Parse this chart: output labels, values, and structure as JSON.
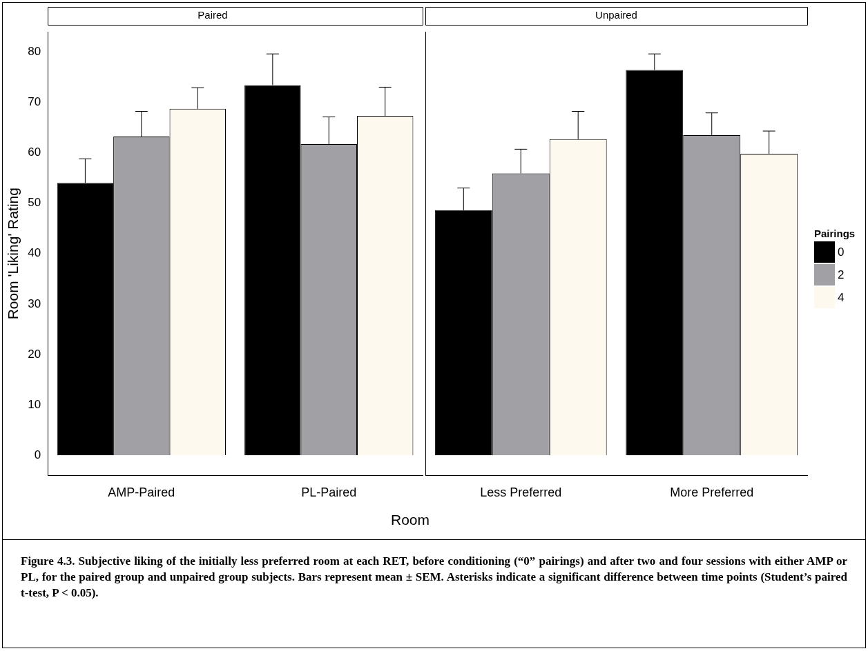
{
  "chart_data": [
    {
      "type": "bar",
      "title": "Paired",
      "ylabel": "Room 'Liking' Rating",
      "xlabel": "Room",
      "categories": [
        "AMP-Paired",
        "PL-Paired"
      ],
      "ylim": [
        -4,
        84
      ],
      "yticks": [
        0,
        10,
        20,
        30,
        40,
        50,
        60,
        70,
        80
      ],
      "grid": false,
      "legend": false,
      "series": [
        {
          "color": "#000000",
          "values": [
            54.0,
            73.4
          ],
          "errors": [
            [
              54.0,
              58.8
            ],
            [
              73.4,
              79.6
            ]
          ]
        },
        {
          "color": "#a1a0a5",
          "values": [
            63.2,
            61.7
          ],
          "errors": [
            [
              63.2,
              68.2
            ],
            [
              61.7,
              67.1
            ]
          ]
        },
        {
          "color": "#fdf9ef",
          "values": [
            68.7,
            67.3
          ],
          "errors": [
            [
              68.7,
              72.9
            ],
            [
              67.3,
              73.0
            ]
          ]
        }
      ],
      "annotations": [
        "Figure 4.3. Subjective liking of the initially less preferred room at each RET, before conditioning (“0” pairings) and after two and four sessions with either AMP or PL, for the paired group and unpaired group subjects.  Bars represent mean ± SEM.  Asterisks indicate a significant difference between time points (Student’s paired t-test, P < 0.05)."
      ]
    },
    {
      "type": "bar",
      "title": "Unpaired",
      "categories": [
        "Less Preferred",
        "More Preferred"
      ],
      "ylim": [
        -4,
        84
      ],
      "yticks": [
        0,
        10,
        20,
        30,
        40,
        50,
        60,
        70,
        80
      ],
      "tick_labels": "x",
      "grid": false,
      "legend": "right",
      "legend_title": "Pairings",
      "series": [
        {
          "name": "0",
          "color": "#000000",
          "values": [
            48.6,
            76.4
          ],
          "errors": [
            [
              48.6,
              53.0
            ],
            [
              76.4,
              79.6
            ]
          ]
        },
        {
          "name": "2",
          "color": "#a1a0a5",
          "values": [
            55.9,
            63.5
          ],
          "errors": [
            [
              55.9,
              60.7
            ],
            [
              63.5,
              67.9
            ]
          ]
        },
        {
          "name": "4",
          "color": "#fdf9ef",
          "values": [
            62.7,
            59.8
          ],
          "errors": [
            [
              62.7,
              68.2
            ],
            [
              59.8,
              64.3
            ]
          ]
        }
      ]
    }
  ]
}
